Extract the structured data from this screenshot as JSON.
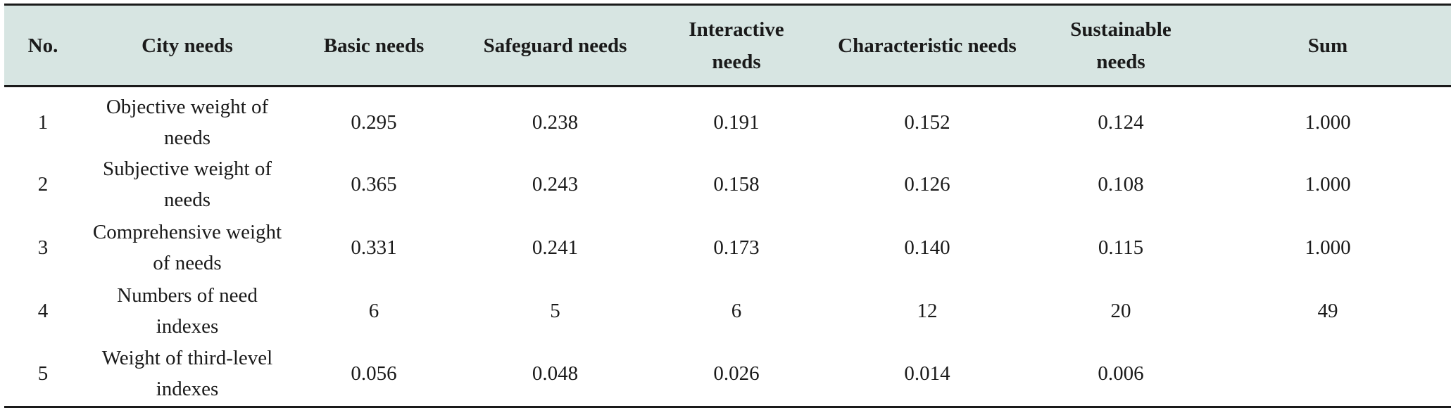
{
  "table": {
    "headers": [
      "No.",
      "City needs",
      "Basic needs",
      "Safeguard needs",
      "Interactive needs",
      "Characteristic needs",
      "Sustainable needs",
      "Sum"
    ],
    "rows": [
      [
        "1",
        "Objective weight of needs",
        "0.295",
        "0.238",
        "0.191",
        "0.152",
        "0.124",
        "1.000"
      ],
      [
        "2",
        "Subjective weight of needs",
        "0.365",
        "0.243",
        "0.158",
        "0.126",
        "0.108",
        "1.000"
      ],
      [
        "3",
        "Comprehensive weight of needs",
        "0.331",
        "0.241",
        "0.173",
        "0.140",
        "0.115",
        "1.000"
      ],
      [
        "4",
        "Numbers of need indexes",
        "6",
        "5",
        "6",
        "12",
        "20",
        "49"
      ],
      [
        "5",
        "Weight of third-level indexes",
        "0.056",
        "0.048",
        "0.026",
        "0.014",
        "0.006",
        ""
      ]
    ]
  },
  "colors": {
    "header_background": "#d7e5e2",
    "rule_color": "#1a1a1a"
  }
}
